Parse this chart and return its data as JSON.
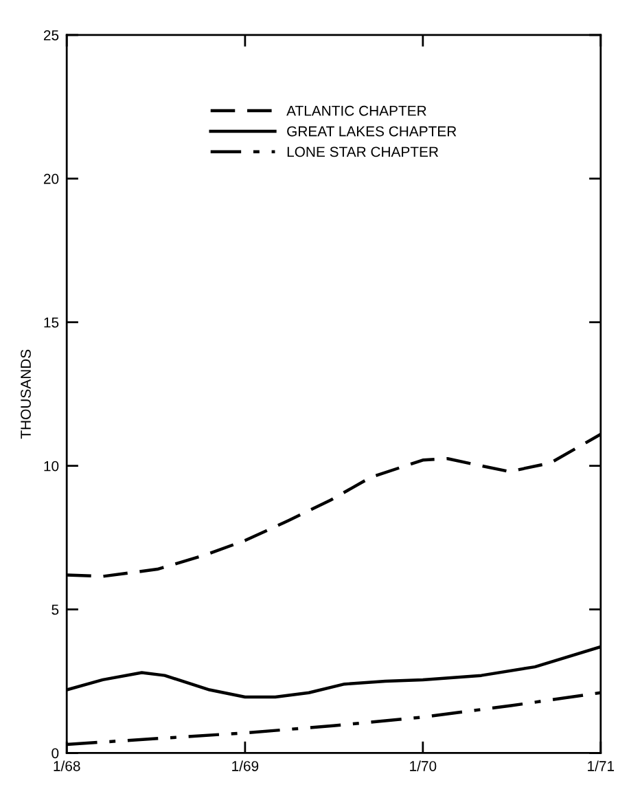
{
  "chart_data": {
    "type": "line",
    "ylabel": "THOUSANDS",
    "xlim": [
      "1968-01-01",
      "1971-01-01"
    ],
    "xticks": [
      {
        "value": "1968-01-01",
        "label": "1/68"
      },
      {
        "value": "1969-01-01",
        "label": "1/69"
      },
      {
        "value": "1970-01-01",
        "label": "1/70"
      },
      {
        "value": "1971-01-01",
        "label": "1/71"
      }
    ],
    "ylim": [
      0,
      25
    ],
    "yticks": [
      0,
      5,
      10,
      15,
      20,
      25
    ],
    "grid": false,
    "legend": "top",
    "marker": "none",
    "series": [
      {
        "name": "ATLANTIC CHAPTER",
        "color": "#000000",
        "line_style": "dashed",
        "x": [
          "1968-01-01",
          "1968-03-15",
          "1968-07-05",
          "1968-10-12",
          "1969-01-01",
          "1969-04-01",
          "1969-06-25",
          "1969-09-16",
          "1970-01-01",
          "1970-02-21",
          "1970-05-01",
          "1970-06-28",
          "1970-09-20",
          "1971-01-01"
        ],
        "values": [
          6.2,
          6.15,
          6.4,
          6.9,
          7.4,
          8.1,
          8.8,
          9.6,
          10.2,
          10.25,
          10.0,
          9.8,
          10.1,
          11.1
        ]
      },
      {
        "name": "GREAT LAKES CHAPTER",
        "color": "#000000",
        "line_style": "solid",
        "x": [
          "1968-01-01",
          "1968-03-15",
          "1968-06-03",
          "1968-07-20",
          "1968-10-20",
          "1969-01-01",
          "1969-03-04",
          "1969-05-12",
          "1969-07-24",
          "1969-10-16",
          "1970-01-01",
          "1970-05-01",
          "1970-08-19",
          "1971-01-01"
        ],
        "values": [
          2.2,
          2.55,
          2.8,
          2.7,
          2.2,
          1.95,
          1.95,
          2.1,
          2.4,
          2.5,
          2.55,
          2.7,
          3.0,
          3.7
        ]
      },
      {
        "name": "LONE STAR CHAPTER",
        "color": "#000000",
        "line_style": "dashdot",
        "x": [
          "1968-01-01",
          "1968-07-01",
          "1969-01-01",
          "1969-07-01",
          "1970-01-01",
          "1970-07-01",
          "1971-01-01"
        ],
        "values": [
          0.3,
          0.5,
          0.7,
          0.95,
          1.25,
          1.65,
          2.1
        ]
      }
    ]
  }
}
